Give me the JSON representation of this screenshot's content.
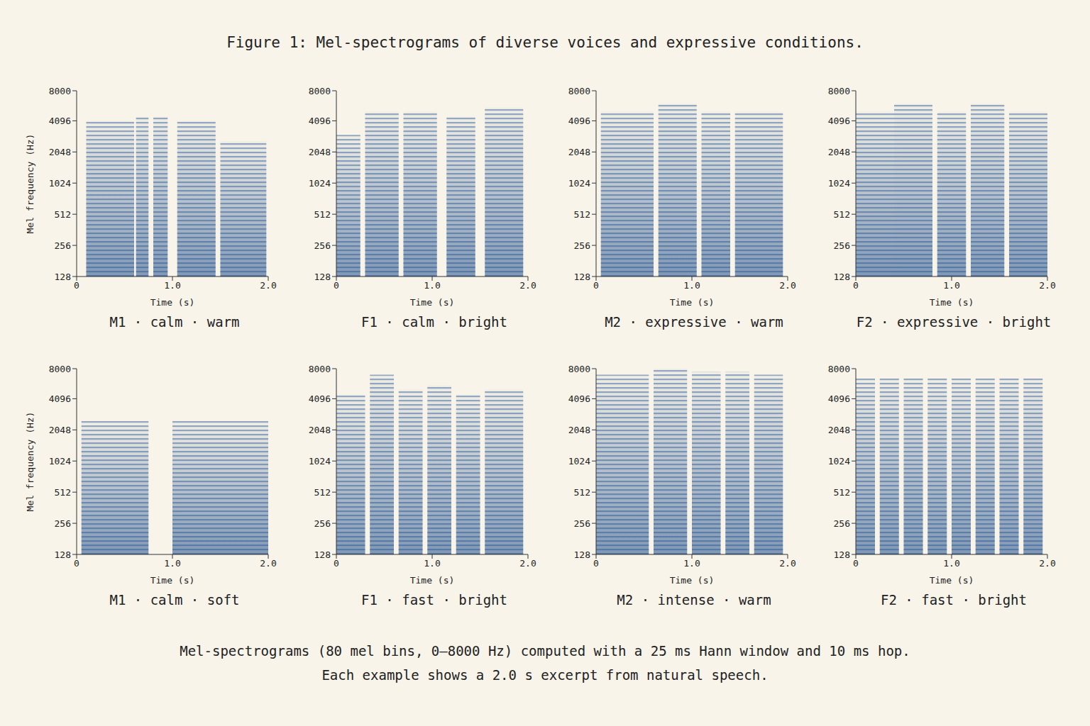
{
  "title": "Figure 1: Mel-spectrograms of diverse voices and expressive conditions.",
  "caption": [
    "Mel-spectrograms (80 mel bins, 0–8000 Hz) computed with a 25 ms Hann window and 10 ms hop.",
    "Each example shows a 2.0 s excerpt from natural speech."
  ],
  "chart_data": [
    {
      "type": "spectrogram",
      "title": "M1 · calm · warm",
      "xlabel": "Time (s)",
      "ylabel": "Mel frequency (Hz)",
      "log": "y",
      "color": "#1f4e8c",
      "xlim": [
        0,
        2
      ],
      "xticks": [
        0,
        {
          "value": 1,
          "label": "1.0"
        },
        {
          "value": 2,
          "label": "2.0"
        }
      ],
      "ylim": [
        128,
        8000
      ],
      "yticks": [
        128,
        256,
        512,
        1024,
        2048,
        4096,
        8000
      ],
      "segments": [
        {
          "start": 0.1,
          "end": 0.6,
          "top": 4096
        },
        {
          "start": 0.62,
          "end": 0.75,
          "top": 4500
        },
        {
          "start": 0.8,
          "end": 0.95,
          "top": 4500
        },
        {
          "start": 1.05,
          "end": 1.45,
          "top": 4096
        },
        {
          "start": 1.5,
          "end": 1.98,
          "top": 2600
        }
      ]
    },
    {
      "type": "spectrogram",
      "title": "F1 · calm · bright",
      "xlabel": "Time (s)",
      "log": "y",
      "color": "#1f4e8c",
      "xlim": [
        0,
        2
      ],
      "xticks": [
        0,
        {
          "value": 1,
          "label": "1.0"
        },
        {
          "value": 2,
          "label": "2.0"
        }
      ],
      "ylim": [
        128,
        8000
      ],
      "yticks": [
        128,
        256,
        512,
        1024,
        2048,
        4096,
        8000
      ],
      "segments": [
        {
          "start": 0.0,
          "end": 0.25,
          "top": 3000
        },
        {
          "start": 0.3,
          "end": 0.65,
          "top": 5000
        },
        {
          "start": 0.7,
          "end": 1.05,
          "top": 5000
        },
        {
          "start": 1.15,
          "end": 1.45,
          "top": 4500
        },
        {
          "start": 1.55,
          "end": 1.95,
          "top": 5500
        }
      ]
    },
    {
      "type": "spectrogram",
      "title": "M2 · expressive · warm",
      "xlabel": "Time (s)",
      "log": "y",
      "color": "#1f4e8c",
      "xlim": [
        0,
        2
      ],
      "xticks": [
        0,
        {
          "value": 1,
          "label": "1.0"
        },
        {
          "value": 2,
          "label": "2.0"
        }
      ],
      "ylim": [
        128,
        8000
      ],
      "yticks": [
        128,
        256,
        512,
        1024,
        2048,
        4096,
        8000
      ],
      "segments": [
        {
          "start": 0.05,
          "end": 0.6,
          "top": 5000
        },
        {
          "start": 0.65,
          "end": 1.05,
          "top": 6000
        },
        {
          "start": 1.1,
          "end": 1.4,
          "top": 5000
        },
        {
          "start": 1.45,
          "end": 1.95,
          "top": 5000
        }
      ]
    },
    {
      "type": "spectrogram",
      "title": "F2 · expressive · bright",
      "xlabel": "Time (s)",
      "log": "y",
      "color": "#1f4e8c",
      "xlim": [
        0,
        2
      ],
      "xticks": [
        0,
        {
          "value": 1,
          "label": "1.0"
        },
        {
          "value": 2,
          "label": "2.0"
        }
      ],
      "ylim": [
        128,
        8000
      ],
      "yticks": [
        128,
        256,
        512,
        1024,
        2048,
        4096,
        8000
      ],
      "segments": [
        {
          "start": 0.0,
          "end": 0.4,
          "top": 5000
        },
        {
          "start": 0.4,
          "end": 0.8,
          "top": 6000
        },
        {
          "start": 0.85,
          "end": 1.15,
          "top": 5000
        },
        {
          "start": 1.2,
          "end": 1.55,
          "top": 6000
        },
        {
          "start": 1.6,
          "end": 2.0,
          "top": 5000
        }
      ]
    },
    {
      "type": "spectrogram",
      "title": "M1 · calm · soft",
      "xlabel": "Time (s)",
      "ylabel": "Mel frequency (Hz)",
      "log": "y",
      "color": "#1f4e8c",
      "xlim": [
        0,
        2
      ],
      "xticks": [
        0,
        {
          "value": 1,
          "label": "1.0"
        },
        {
          "value": 2,
          "label": "2.0"
        }
      ],
      "ylim": [
        128,
        8000
      ],
      "yticks": [
        128,
        256,
        512,
        1024,
        2048,
        4096,
        8000
      ],
      "segments": [
        {
          "start": 0.05,
          "end": 0.75,
          "top": 2500
        },
        {
          "start": 1.0,
          "end": 2.0,
          "top": 2500
        }
      ]
    },
    {
      "type": "spectrogram",
      "title": "F1 · fast · bright",
      "xlabel": "Time (s)",
      "log": "y",
      "color": "#1f4e8c",
      "xlim": [
        0,
        2
      ],
      "xticks": [
        0,
        {
          "value": 1,
          "label": "1.0"
        },
        {
          "value": 2,
          "label": "2.0"
        }
      ],
      "ylim": [
        128,
        8000
      ],
      "yticks": [
        128,
        256,
        512,
        1024,
        2048,
        4096,
        8000
      ],
      "segments": [
        {
          "start": 0.0,
          "end": 0.3,
          "top": 4500
        },
        {
          "start": 0.35,
          "end": 0.6,
          "top": 7000
        },
        {
          "start": 0.65,
          "end": 0.9,
          "top": 5000
        },
        {
          "start": 0.95,
          "end": 1.2,
          "top": 5500
        },
        {
          "start": 1.25,
          "end": 1.5,
          "top": 4500
        },
        {
          "start": 1.55,
          "end": 1.95,
          "top": 5000
        }
      ]
    },
    {
      "type": "spectrogram",
      "title": "M2 · intense · warm",
      "xlabel": "Time (s)",
      "log": "y",
      "color": "#1f4e8c",
      "xlim": [
        0,
        2
      ],
      "xticks": [
        0,
        {
          "value": 1,
          "label": "1.0"
        },
        {
          "value": 2,
          "label": "2.0"
        }
      ],
      "ylim": [
        128,
        8000
      ],
      "yticks": [
        128,
        256,
        512,
        1024,
        2048,
        4096,
        8000
      ],
      "segments": [
        {
          "start": 0.0,
          "end": 0.55,
          "top": 7000
        },
        {
          "start": 0.6,
          "end": 0.95,
          "top": 8000
        },
        {
          "start": 1.0,
          "end": 1.3,
          "top": 7500
        },
        {
          "start": 1.35,
          "end": 1.6,
          "top": 7500
        },
        {
          "start": 1.65,
          "end": 1.95,
          "top": 7000
        }
      ]
    },
    {
      "type": "spectrogram",
      "title": "F2 · fast · bright",
      "xlabel": "Time (s)",
      "log": "y",
      "color": "#1f4e8c",
      "xlim": [
        0,
        2
      ],
      "xticks": [
        0,
        {
          "value": 1,
          "label": "1.0"
        },
        {
          "value": 2,
          "label": "2.0"
        }
      ],
      "ylim": [
        128,
        8000
      ],
      "yticks": [
        128,
        256,
        512,
        1024,
        2048,
        4096,
        8000
      ],
      "segments": [
        {
          "start": 0.0,
          "end": 0.2,
          "top": 6500
        },
        {
          "start": 0.25,
          "end": 0.45,
          "top": 6500
        },
        {
          "start": 0.5,
          "end": 0.7,
          "top": 6500
        },
        {
          "start": 0.75,
          "end": 0.95,
          "top": 6500
        },
        {
          "start": 1.0,
          "end": 1.2,
          "top": 6500
        },
        {
          "start": 1.25,
          "end": 1.45,
          "top": 6500
        },
        {
          "start": 1.5,
          "end": 1.7,
          "top": 6500
        },
        {
          "start": 1.75,
          "end": 1.95,
          "top": 6500
        }
      ]
    }
  ]
}
